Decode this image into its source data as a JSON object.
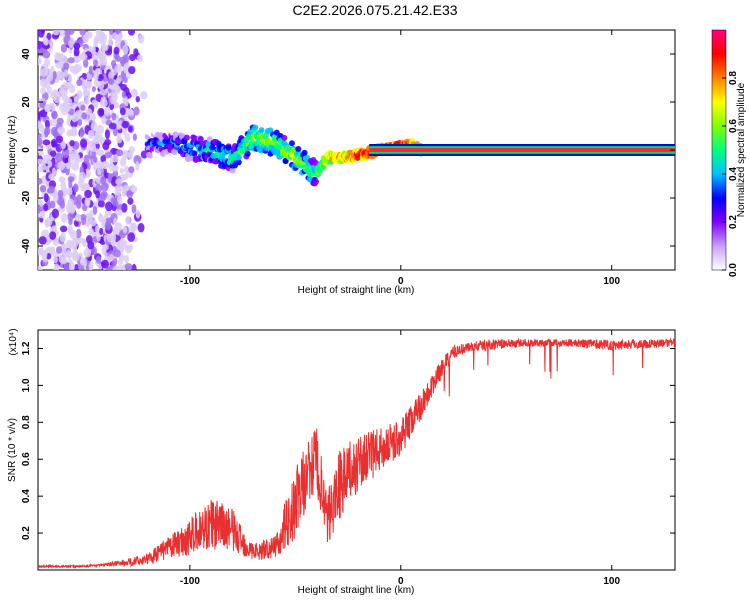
{
  "title": "C2E2.2026.075.21.42.E33",
  "colors": {
    "snr_line": "#e83030",
    "axis": "#000000",
    "background": "#ffffff",
    "low_amplitude": "#d8c8f2",
    "mid_amplitude": "#6010ff",
    "high_amplitude": "#ff2040"
  },
  "chart_data": [
    {
      "type": "heatmap",
      "name": "spectrogram",
      "xlabel": "Height of straight line (km)",
      "ylabel": "Frequency (Hz)",
      "xlim": [
        -172,
        130
      ],
      "ylim": [
        -50,
        50
      ],
      "xticks": [
        -100,
        0,
        100
      ],
      "xtick_labels": [
        "-100",
        "0",
        "100"
      ],
      "yticks": [
        -40,
        -20,
        0,
        20,
        40
      ],
      "ytick_labels": [
        "-40",
        "-20",
        "0",
        "20",
        "40"
      ],
      "colorbar": {
        "label": "Normalized spectral amplitude",
        "range": [
          0,
          1
        ],
        "ticks": [
          0.0,
          0.2,
          0.4,
          0.6,
          0.8
        ],
        "tick_labels": [
          "0.0",
          "0.2",
          "0.4",
          "0.6",
          "0.8"
        ],
        "colors": [
          "#ffffff",
          "#c8a0ff",
          "#8000ff",
          "#0000ff",
          "#00c0ff",
          "#00ff80",
          "#80ff00",
          "#ffff00",
          "#ff8000",
          "#ff0000",
          "#ff0080"
        ]
      },
      "ridge": {
        "description": "dominant frequency track vs height",
        "x": [
          -120,
          -110,
          -100,
          -90,
          -80,
          -70,
          -60,
          -50,
          -40,
          -35,
          -30,
          -20,
          -10,
          0,
          5,
          10,
          130
        ],
        "y": [
          2,
          3,
          1,
          0,
          -4,
          5,
          3,
          -3,
          -10,
          -3,
          -3,
          -2,
          0,
          1,
          2,
          0,
          0
        ],
        "amplitude": [
          0.3,
          0.35,
          0.4,
          0.45,
          0.5,
          0.6,
          0.6,
          0.65,
          0.5,
          0.7,
          0.75,
          0.85,
          0.9,
          0.9,
          0.9,
          0.95,
          0.95
        ]
      },
      "noise_region": {
        "x": [
          -172,
          -120
        ],
        "y": [
          -50,
          50
        ],
        "amplitude": 0.15
      }
    },
    {
      "type": "line",
      "name": "snr",
      "xlabel": "Height of straight line (km)",
      "ylabel": "SNR (10 * v/v)",
      "y_scale_label": "(x10⁴)",
      "xlim": [
        -172,
        130
      ],
      "ylim": [
        0,
        1.3
      ],
      "xticks": [
        -100,
        0,
        100
      ],
      "xtick_labels": [
        "-100",
        "0",
        "100"
      ],
      "yticks": [
        0.2,
        0.4,
        0.6,
        0.8,
        1.0,
        1.2
      ],
      "ytick_labels": [
        "0.2",
        "0.4",
        "0.6",
        "0.8",
        "1.0",
        "1.2"
      ],
      "series": [
        {
          "name": "SNR",
          "x": [
            -172,
            -160,
            -150,
            -140,
            -130,
            -120,
            -110,
            -100,
            -90,
            -80,
            -75,
            -70,
            -60,
            -50,
            -45,
            -40,
            -35,
            -30,
            -20,
            -10,
            0,
            10,
            15,
            20,
            25,
            30,
            40,
            60,
            80,
            100,
            130
          ],
          "y": [
            0.02,
            0.02,
            0.02,
            0.03,
            0.04,
            0.06,
            0.12,
            0.18,
            0.25,
            0.22,
            0.15,
            0.1,
            0.12,
            0.35,
            0.5,
            0.6,
            0.25,
            0.45,
            0.58,
            0.65,
            0.72,
            0.9,
            1.0,
            1.1,
            1.18,
            1.2,
            1.22,
            1.23,
            1.23,
            1.22,
            1.23
          ],
          "noise": [
            0.005,
            0.005,
            0.005,
            0.008,
            0.02,
            0.03,
            0.06,
            0.1,
            0.14,
            0.12,
            0.08,
            0.05,
            0.06,
            0.2,
            0.18,
            0.2,
            0.15,
            0.2,
            0.15,
            0.12,
            0.1,
            0.08,
            0.06,
            0.05,
            0.04,
            0.03,
            0.03,
            0.02,
            0.02,
            0.03,
            0.02
          ]
        }
      ]
    }
  ]
}
